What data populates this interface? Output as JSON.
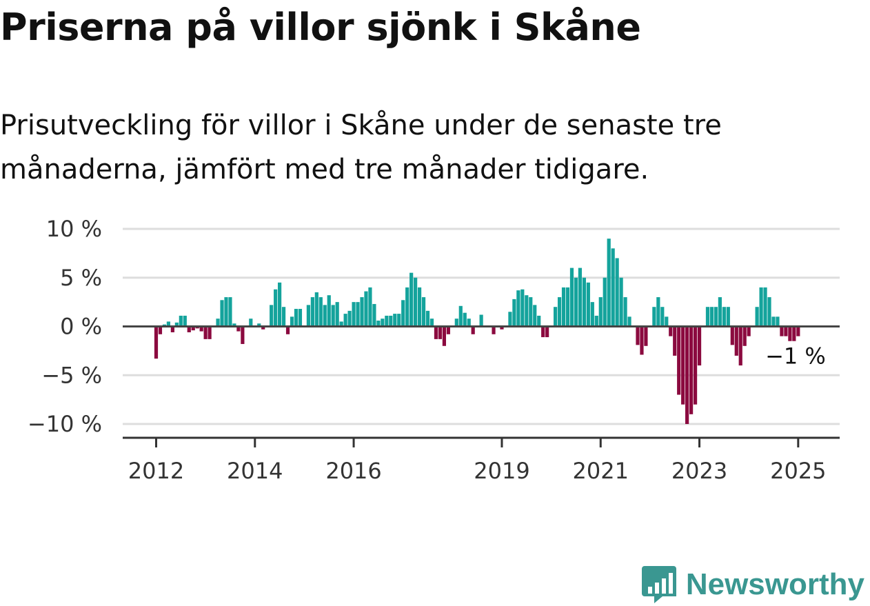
{
  "title": "Priserna på villor sjönk i Skåne",
  "subtitle": "Prisutveckling för villor i Skåne under de senaste tre månaderna, jämfört med tre månader tidigare.",
  "brand": {
    "name": "Newsworthy",
    "icon": "newsworthy-logo-icon"
  },
  "colors": {
    "positive": "#14a39c",
    "negative": "#8b0a3f",
    "gridline": "#dddddd",
    "zeroline": "#444444"
  },
  "chart_data": {
    "type": "bar",
    "x_start": "2012-01",
    "x_end": "2025-01",
    "x_tick_labels": [
      "2012",
      "2014",
      "2016",
      "2019",
      "2021",
      "2023",
      "2025"
    ],
    "y_tick_labels": [
      "10 %",
      "5 %",
      "0 %",
      "−5 %",
      "−10 %"
    ],
    "y_ticks": [
      10,
      5,
      0,
      -5,
      -10
    ],
    "ylim": [
      -11.5,
      10
    ],
    "end_label": "−1 %",
    "grid": true,
    "legend": "none",
    "values": [
      -3.3,
      -0.8,
      0.2,
      0.5,
      -0.6,
      0.4,
      1.1,
      1.1,
      -0.6,
      -0.4,
      -0.2,
      -0.5,
      -1.3,
      -1.3,
      0,
      0.8,
      2.7,
      3,
      3,
      0.3,
      -0.5,
      -1.8,
      0,
      0.8,
      0,
      0.3,
      -0.3,
      0,
      2.2,
      3.8,
      4.5,
      2,
      -0.8,
      1,
      1.8,
      1.8,
      0,
      2.2,
      3,
      3.5,
      3,
      2.2,
      3.2,
      2.2,
      2.5,
      0.5,
      1.3,
      1.6,
      2.5,
      2.5,
      3,
      3.6,
      4,
      2.3,
      0.6,
      0.8,
      1.1,
      1.1,
      1.3,
      1.3,
      2.7,
      4,
      5.5,
      5,
      4,
      3,
      1.6,
      0.8,
      -1.3,
      -1.3,
      -2,
      -0.8,
      0,
      0.8,
      2.1,
      1.4,
      0.8,
      -0.8,
      0,
      1.2,
      0.1,
      0.1,
      -0.8,
      0,
      -0.3,
      0.1,
      1.5,
      2.8,
      3.7,
      3.8,
      3.2,
      3,
      2.2,
      1.1,
      -1.1,
      -1.1,
      0,
      2,
      3,
      4,
      4,
      6,
      5,
      6,
      5,
      4.5,
      2.5,
      1.1,
      3,
      5,
      9,
      8,
      7,
      5,
      3,
      1,
      0,
      -1.9,
      -2.9,
      -2,
      0,
      2,
      3,
      2,
      1,
      -1,
      -3,
      -7,
      -8,
      -10,
      -9,
      -8,
      -4,
      0,
      2,
      2,
      2,
      3,
      2,
      2,
      -1.9,
      -3,
      -4,
      -2,
      -1,
      0,
      2,
      4,
      4,
      3,
      1,
      1,
      -1,
      -1,
      -1.5,
      -1.5,
      -1
    ]
  }
}
